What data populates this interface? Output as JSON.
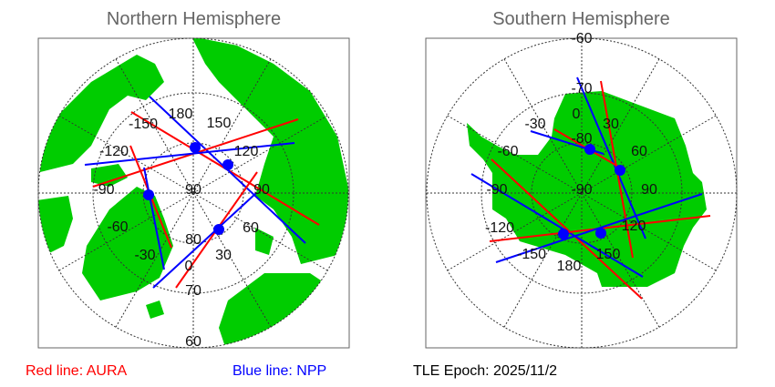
{
  "north": {
    "title": "Northern Hemisphere",
    "lon_labels": [
      "180",
      "150",
      "120",
      "90",
      "60",
      "30",
      "0",
      "-30",
      "-60",
      "-90",
      "-120",
      "-150"
    ],
    "lat_labels": [
      "90",
      "80",
      "70",
      "60"
    ]
  },
  "south": {
    "title": "Southern Hemisphere",
    "lon_labels": [
      "0",
      "30",
      "60",
      "90",
      "120",
      "150",
      "180",
      "-150",
      "-120",
      "-90",
      "-60",
      "-30"
    ],
    "lat_labels": [
      "-90",
      "-80",
      "-70",
      "-60"
    ]
  },
  "legend": {
    "red": "Red line: AURA",
    "blue": "Blue line: NPP",
    "epoch": "TLE Epoch: 2025/11/2"
  },
  "colors": {
    "land": "#00cc00",
    "aura": "#ff0000",
    "npp": "#0000ff",
    "frame": "#666666"
  }
}
